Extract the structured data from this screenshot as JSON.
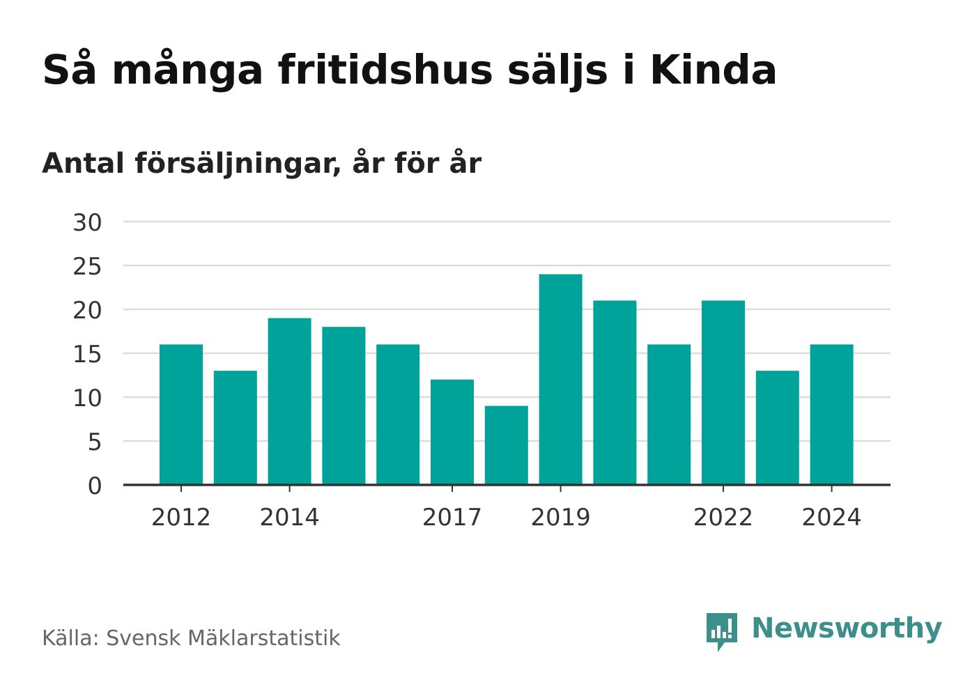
{
  "header": {
    "title": "Så många fritidshus säljs i Kinda",
    "subtitle": "Antal försäljningar, år för år"
  },
  "footer": {
    "source": "Källa: Svensk Mäklarstatistik",
    "brand": "Newsworthy",
    "brand_icon": "newsworthy-logo-icon"
  },
  "colors": {
    "bar": "#00a39a",
    "grid": "#dddddd",
    "axis": "#333333",
    "text": "#333333",
    "brand": "#3c8f8a"
  },
  "chart_data": {
    "type": "bar",
    "categories": [
      "2012",
      "2013",
      "2014",
      "2015",
      "2016",
      "2017",
      "2018",
      "2019",
      "2020",
      "2021",
      "2022",
      "2023",
      "2024"
    ],
    "values": [
      16,
      13,
      19,
      18,
      16,
      12,
      9,
      24,
      21,
      16,
      21,
      13,
      16
    ],
    "x_tick_labels": [
      "2012",
      "2014",
      "2017",
      "2019",
      "2022",
      "2024"
    ],
    "y_ticks": [
      0,
      5,
      10,
      15,
      20,
      25,
      30
    ],
    "ylim": [
      0,
      30
    ],
    "grid": true,
    "legend": "none"
  }
}
